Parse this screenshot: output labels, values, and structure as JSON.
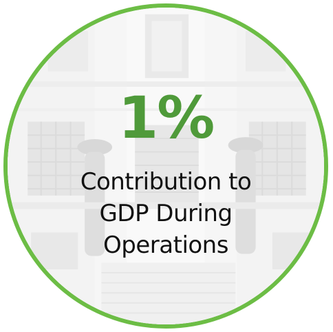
{
  "stat": {
    "value": "1%",
    "color": "#4f9a3a"
  },
  "caption": {
    "lines": [
      "Contribution to",
      "GDP During",
      "Operations"
    ]
  },
  "ring": {
    "color": "#6cbd45"
  },
  "background_image": {
    "description_icon": "faded-building-facade-image"
  }
}
